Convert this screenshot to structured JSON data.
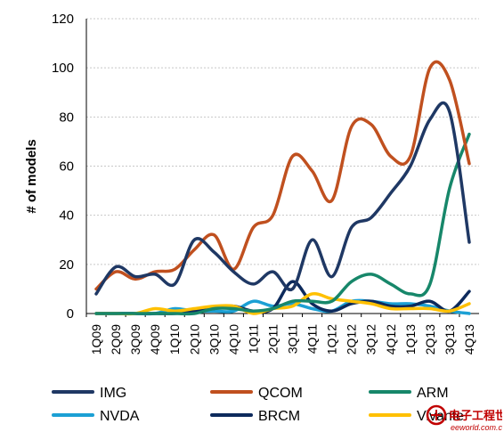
{
  "chart_data": {
    "type": "line",
    "title": "",
    "xlabel": "",
    "ylabel": "# of models",
    "ylim": [
      0,
      120
    ],
    "yticks": [
      0,
      20,
      40,
      60,
      80,
      100,
      120
    ],
    "grid": true,
    "legend_position": "bottom",
    "categories": [
      "1Q09",
      "2Q09",
      "3Q09",
      "4Q09",
      "1Q10",
      "2Q10",
      "3Q10",
      "4Q10",
      "1Q11",
      "2Q11",
      "3Q11",
      "4Q11",
      "1Q12",
      "2Q12",
      "3Q12",
      "4Q12",
      "1Q13",
      "2Q13",
      "3Q13",
      "4Q13"
    ],
    "series": [
      {
        "name": "IMG",
        "color": "#1f3864",
        "values": [
          8,
          19,
          15,
          16,
          12,
          30,
          25,
          17,
          12,
          17,
          10,
          30,
          15,
          35,
          39,
          49,
          60,
          79,
          82,
          29
        ]
      },
      {
        "name": "QCOM",
        "color": "#c0501f",
        "values": [
          10,
          17,
          14,
          17,
          18,
          26,
          32,
          18,
          35,
          40,
          64,
          58,
          46,
          76,
          77,
          64,
          64,
          100,
          95,
          61
        ]
      },
      {
        "name": "ARM",
        "color": "#17876a",
        "values": [
          0,
          0,
          0,
          0,
          0,
          0,
          2,
          2,
          1,
          2,
          5,
          5,
          5,
          13,
          16,
          12,
          8,
          12,
          51,
          73
        ]
      },
      {
        "name": "NVDA",
        "color": "#1ca0d4",
        "values": [
          0,
          0,
          0,
          0,
          2,
          1,
          1,
          1,
          5,
          3,
          4,
          2,
          1,
          5,
          5,
          4,
          4,
          3,
          1,
          0
        ]
      },
      {
        "name": "BRCM",
        "color": "#0d2a5c",
        "values": [
          0,
          0,
          0,
          0,
          0,
          1,
          2,
          3,
          1,
          2,
          13,
          4,
          1,
          4,
          5,
          3,
          3,
          5,
          1,
          9
        ]
      },
      {
        "name": "Vivante",
        "color": "#ffc000",
        "values": [
          0,
          0,
          0,
          2,
          1,
          2,
          3,
          3,
          0,
          2,
          3,
          8,
          6,
          5,
          4,
          2,
          2,
          2,
          1,
          4
        ]
      }
    ]
  },
  "watermark": {
    "line1": "电子工程世界",
    "line2": "eeworld.com.cn"
  }
}
